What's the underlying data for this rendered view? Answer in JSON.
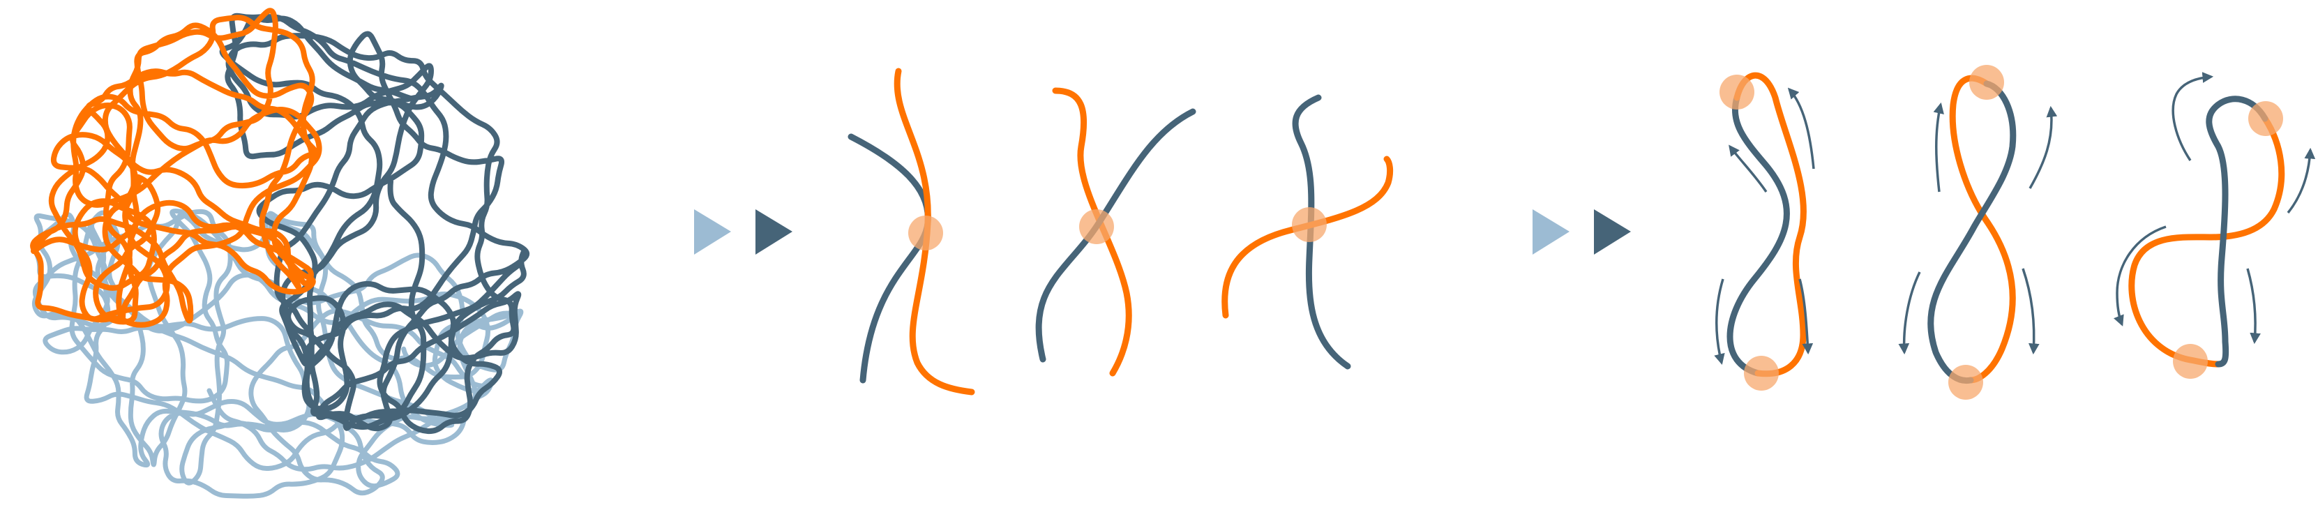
{
  "colors": {
    "orange": "#FF7300",
    "dark_blue": "#466478",
    "light_blue": "#9BBBD2",
    "contact_highlight": "#F7A86E",
    "arrow_light": "#9CBBD3",
    "arrow_dark": "#466478",
    "background": "#ffffff"
  },
  "panels": [
    {
      "id": "tangle",
      "description_icon": "chromosome-tangle-icon"
    },
    {
      "id": "pair-crossings",
      "strand_pairs": 3
    },
    {
      "id": "figure-eight-loops",
      "loops": 3
    }
  ],
  "transitions": [
    {
      "id": "step-1",
      "icons": [
        "light-play-triangle-icon",
        "dark-play-triangle-icon"
      ]
    },
    {
      "id": "step-2",
      "icons": [
        "light-play-triangle-icon",
        "dark-play-triangle-icon"
      ]
    }
  ]
}
